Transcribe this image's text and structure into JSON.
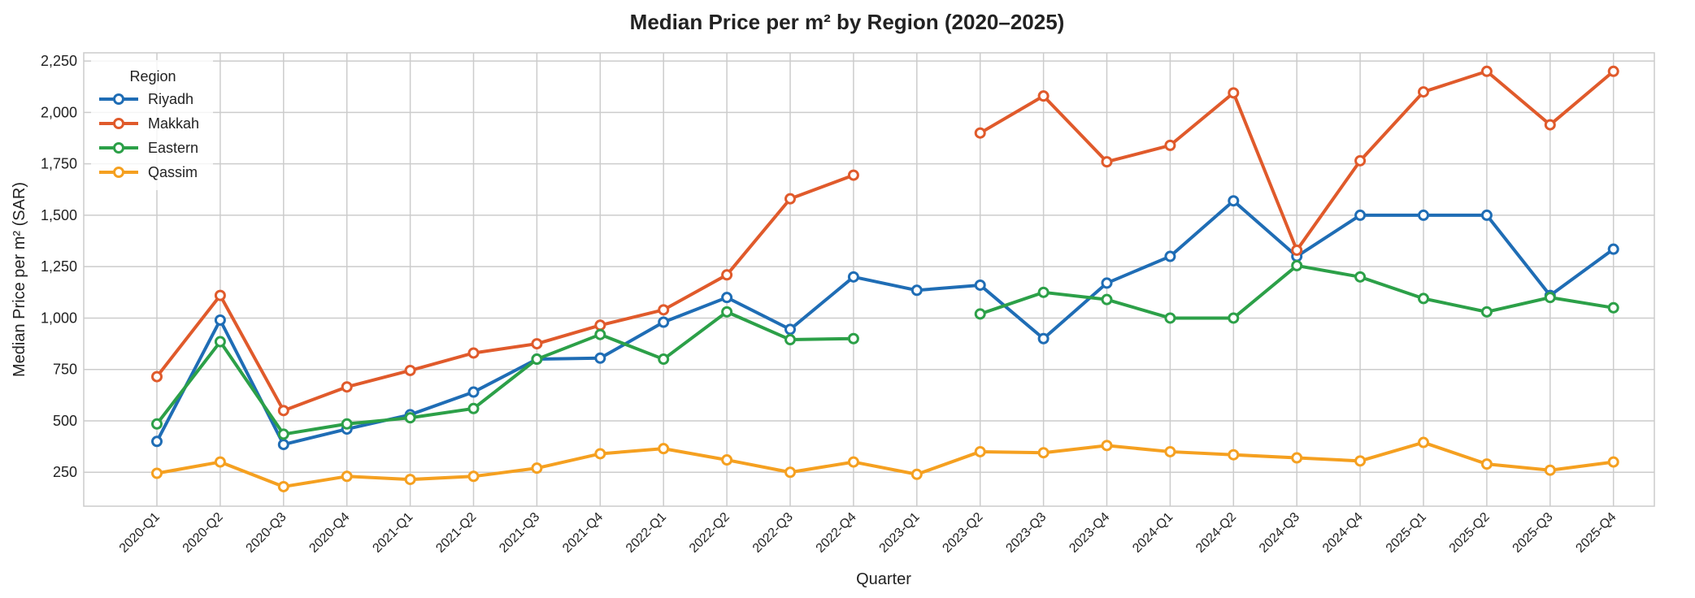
{
  "chart_data": {
    "type": "line",
    "title": "Median Price per m² by Region (2020–2025)",
    "xlabel": "Quarter",
    "ylabel": "Median Price per m² (SAR)",
    "ylim": [
      85,
      2290
    ],
    "yticks": [
      250,
      500,
      750,
      1000,
      1250,
      1500,
      1750,
      2000,
      2250
    ],
    "ytick_labels": [
      "250",
      "500",
      "750",
      "1,000",
      "1,250",
      "1,500",
      "1,750",
      "2,000",
      "2,250"
    ],
    "grid": true,
    "legend": {
      "title": "Region",
      "position": "top-left"
    },
    "categories": [
      "2020-Q1",
      "2020-Q2",
      "2020-Q3",
      "2020-Q4",
      "2021-Q1",
      "2021-Q2",
      "2021-Q3",
      "2021-Q4",
      "2022-Q1",
      "2022-Q2",
      "2022-Q3",
      "2022-Q4",
      "2023-Q1",
      "2023-Q2",
      "2023-Q3",
      "2023-Q4",
      "2024-Q1",
      "2024-Q2",
      "2024-Q3",
      "2024-Q4",
      "2025-Q1",
      "2025-Q2",
      "2025-Q3",
      "2025-Q4"
    ],
    "series": [
      {
        "name": "Riyadh",
        "color": "#1f6db5",
        "values": [
          400,
          990,
          385,
          460,
          530,
          640,
          800,
          805,
          980,
          1100,
          945,
          1200,
          1135,
          1160,
          900,
          1170,
          1300,
          1570,
          1300,
          1500,
          1500,
          1500,
          1110,
          1335
        ]
      },
      {
        "name": "Makkah",
        "color": "#e05a2b",
        "values": [
          715,
          1110,
          550,
          665,
          745,
          830,
          875,
          965,
          1040,
          1210,
          1580,
          1695,
          null,
          1900,
          2080,
          1760,
          1840,
          2095,
          1330,
          1765,
          2100,
          2200,
          1940,
          2200
        ]
      },
      {
        "name": "Eastern",
        "color": "#2ca048",
        "values": [
          485,
          885,
          435,
          485,
          515,
          560,
          800,
          920,
          800,
          1030,
          895,
          900,
          null,
          1020,
          1125,
          1090,
          1000,
          1000,
          1255,
          1200,
          1095,
          1030,
          1100,
          1050
        ]
      },
      {
        "name": "Qassim",
        "color": "#f5a020",
        "values": [
          245,
          300,
          180,
          230,
          215,
          230,
          270,
          340,
          365,
          310,
          250,
          300,
          240,
          350,
          345,
          380,
          350,
          335,
          320,
          305,
          395,
          290,
          260,
          300
        ]
      }
    ]
  }
}
